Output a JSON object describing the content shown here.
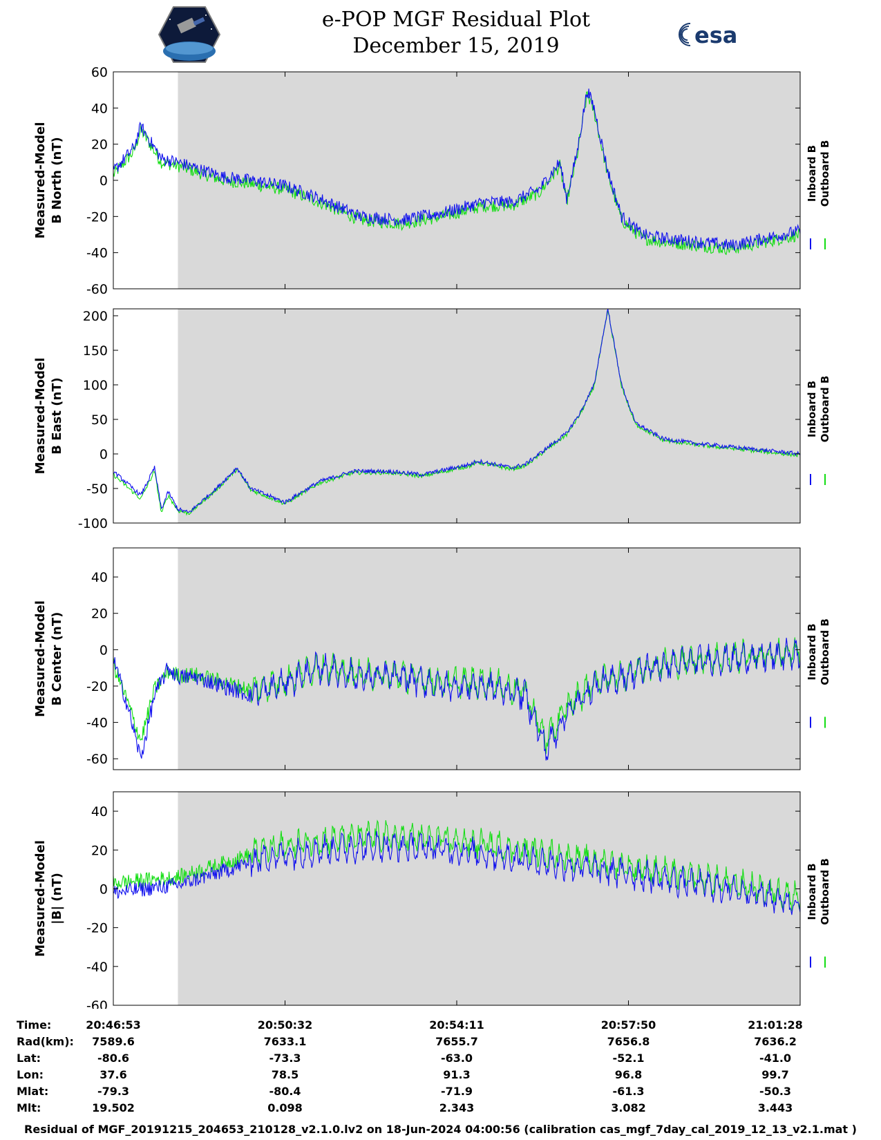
{
  "header": {
    "title_line1": "e-POP MGF Residual Plot",
    "title_line2": "December 15, 2019",
    "agency_logo_text": "esa"
  },
  "legend": {
    "inboard_label": "Inboard B",
    "outboard_label": "Outboard B",
    "inboard_color": "#1010ee",
    "outboard_color": "#11dd11"
  },
  "shading": {
    "color": "#d9d9d9",
    "start_fraction": 0.094
  },
  "chart_data": [
    {
      "type": "line",
      "ylabel_line1": "Measured-Model",
      "ylabel_line2": "B North (nT)",
      "ylim": [
        -60,
        60
      ],
      "yticks": [
        60,
        40,
        20,
        0,
        -20,
        -40,
        -60
      ],
      "x": [
        0,
        0.03,
        0.04,
        0.07,
        0.094,
        0.11,
        0.16,
        0.2,
        0.25,
        0.3,
        0.36,
        0.42,
        0.48,
        0.54,
        0.58,
        0.62,
        0.64,
        0.65,
        0.66,
        0.675,
        0.69,
        0.7,
        0.72,
        0.74,
        0.77,
        0.8,
        0.85,
        0.9,
        0.95,
        1.0
      ],
      "series": [
        {
          "name": "Inboard B",
          "values": [
            5,
            18,
            30,
            12,
            10,
            8,
            2,
            0,
            -3,
            -10,
            -20,
            -22,
            -18,
            -12,
            -12,
            -5,
            5,
            10,
            -10,
            15,
            50,
            40,
            5,
            -20,
            -30,
            -32,
            -34,
            -36,
            -32,
            -28
          ]
        },
        {
          "name": "Outboard B",
          "values": [
            3,
            16,
            28,
            10,
            8,
            6,
            0,
            -2,
            -5,
            -12,
            -22,
            -24,
            -20,
            -14,
            -14,
            -7,
            3,
            8,
            -12,
            13,
            48,
            38,
            3,
            -22,
            -32,
            -34,
            -36,
            -38,
            -34,
            -30
          ]
        }
      ]
    },
    {
      "type": "line",
      "ylabel_line1": "Measured-Model",
      "ylabel_line2": "B East (nT)",
      "ylim": [
        -100,
        210
      ],
      "yticks": [
        200,
        150,
        100,
        50,
        0,
        -50,
        -100
      ],
      "x": [
        0,
        0.04,
        0.06,
        0.07,
        0.08,
        0.094,
        0.11,
        0.15,
        0.18,
        0.2,
        0.25,
        0.3,
        0.35,
        0.4,
        0.45,
        0.52,
        0.53,
        0.58,
        0.6,
        0.62,
        0.66,
        0.68,
        0.7,
        0.72,
        0.74,
        0.76,
        0.8,
        0.85,
        0.9,
        0.95,
        1.0
      ],
      "series": [
        {
          "name": "Inboard B",
          "values": [
            -25,
            -60,
            -20,
            -80,
            -55,
            -80,
            -85,
            -50,
            -20,
            -50,
            -70,
            -40,
            -25,
            -25,
            -30,
            -15,
            -10,
            -20,
            -15,
            0,
            30,
            60,
            100,
            210,
            100,
            45,
            22,
            15,
            10,
            5,
            0
          ]
        },
        {
          "name": "Outboard B",
          "values": [
            -30,
            -65,
            -25,
            -85,
            -60,
            -82,
            -86,
            -52,
            -22,
            -52,
            -72,
            -42,
            -27,
            -27,
            -32,
            -17,
            -12,
            -22,
            -17,
            -2,
            28,
            58,
            98,
            208,
            98,
            43,
            20,
            13,
            8,
            3,
            -2
          ]
        }
      ]
    },
    {
      "type": "line",
      "ylabel_line1": "Measured-Model",
      "ylabel_line2": "B Center (nT)",
      "ylim": [
        -66,
        56
      ],
      "yticks": [
        40,
        20,
        0,
        -20,
        -40,
        -60
      ],
      "x": [
        0,
        0.02,
        0.04,
        0.06,
        0.08,
        0.094,
        0.12,
        0.16,
        0.2,
        0.24,
        0.3,
        0.36,
        0.42,
        0.48,
        0.54,
        0.6,
        0.63,
        0.66,
        0.7,
        0.74,
        0.78,
        0.82,
        0.86,
        0.9,
        0.94,
        0.98,
        1.0
      ],
      "series": [
        {
          "name": "Inboard B",
          "values": [
            -5,
            -30,
            -60,
            -25,
            -10,
            -15,
            -15,
            -20,
            -25,
            -20,
            -10,
            -15,
            -15,
            -20,
            -20,
            -25,
            -55,
            -35,
            -20,
            -15,
            -10,
            -8,
            -6,
            -5,
            -4,
            -3,
            -3
          ]
        },
        {
          "name": "Outboard B",
          "values": [
            -8,
            -28,
            -50,
            -22,
            -12,
            -14,
            -14,
            -18,
            -22,
            -18,
            -9,
            -14,
            -14,
            -18,
            -18,
            -23,
            -50,
            -32,
            -18,
            -14,
            -9,
            -7,
            -5,
            -4,
            -3,
            -2,
            -2
          ]
        }
      ]
    },
    {
      "type": "line",
      "ylabel_line1": "Measured-Model",
      "ylabel_line2": "|B| (nT)",
      "ylim": [
        -60,
        50
      ],
      "yticks": [
        40,
        20,
        0,
        -20,
        -40,
        -60
      ],
      "x": [
        0,
        0.094,
        0.15,
        0.22,
        0.3,
        0.38,
        0.46,
        0.54,
        0.62,
        0.7,
        0.78,
        0.86,
        0.93,
        1.0
      ],
      "series": [
        {
          "name": "Inboard B",
          "values": [
            -2,
            2,
            8,
            16,
            20,
            22,
            21,
            18,
            14,
            10,
            6,
            2,
            -2,
            -8
          ]
        },
        {
          "name": "Outboard B",
          "values": [
            3,
            6,
            12,
            20,
            25,
            27,
            26,
            23,
            19,
            14,
            10,
            5,
            1,
            -4
          ]
        }
      ]
    }
  ],
  "info_table": {
    "row_labels": [
      "Time:",
      "Rad(km):",
      "Lat:",
      "Lon:",
      "Mlat:",
      "Mlt:"
    ],
    "columns": [
      [
        "20:46:53",
        "7589.6",
        "-80.6",
        "37.6",
        "-79.3",
        "19.502"
      ],
      [
        "20:50:32",
        "7633.1",
        "-73.3",
        "78.5",
        "-80.4",
        "0.098"
      ],
      [
        "20:54:11",
        "7655.7",
        "-63.0",
        "91.3",
        "-71.9",
        "2.343"
      ],
      [
        "20:57:50",
        "7656.8",
        "-52.1",
        "96.8",
        "-61.3",
        "3.082"
      ],
      [
        "21:01:28",
        "7636.2",
        "-41.0",
        "99.7",
        "-50.3",
        "3.443"
      ]
    ]
  },
  "footer": "Residual of MGF_20191215_204653_210128_v2.1.0.lv2 on 18-Jun-2024 04:00:56 (calibration cas_mgf_7day_cal_2019_12_13_v2.1.mat )"
}
